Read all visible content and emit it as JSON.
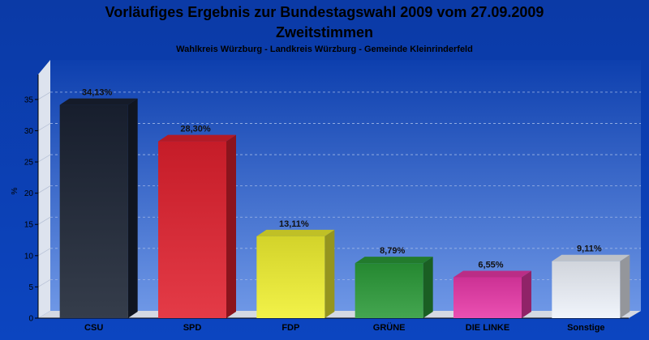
{
  "chart_data": {
    "type": "bar",
    "title": "Vorläufiges Ergebnis zur Bundestagswahl 2009 vom 27.09.2009",
    "title2": "Zweitstimmen",
    "subtitle": "Wahlkreis Würzburg - Landkreis Würzburg - Gemeinde Kleinrinderfeld",
    "ylabel": "%",
    "ylim": [
      0,
      39
    ],
    "yticks": [
      0,
      5,
      10,
      15,
      20,
      25,
      30,
      35
    ],
    "grid": true,
    "legend": "none",
    "categories": [
      "CSU",
      "SPD",
      "FDP",
      "GRÜNE",
      "DIE LINKE",
      "Sonstige"
    ],
    "values": [
      34.13,
      28.3,
      13.11,
      8.79,
      6.55,
      9.11
    ],
    "value_labels": [
      "34,13%",
      "28,30%",
      "13,11%",
      "8,79%",
      "6,55%",
      "9,11%"
    ],
    "colors": [
      "#1a2233",
      "#e0202e",
      "#f0f030",
      "#2a9a38",
      "#e838a8",
      "#eef2fa"
    ]
  }
}
